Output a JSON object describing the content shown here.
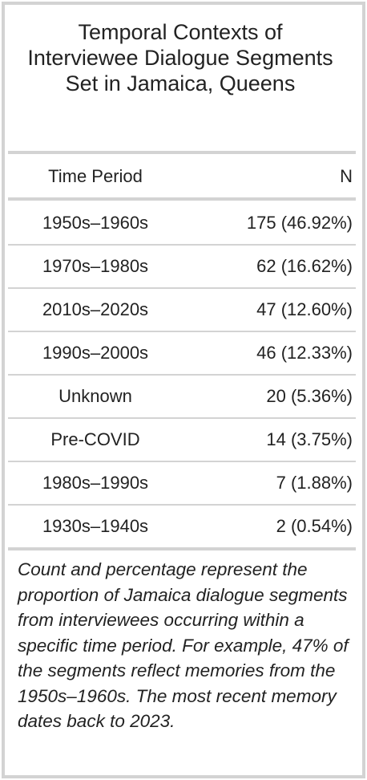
{
  "table": {
    "title": "Temporal Contexts of Interviewee Dialogue Segments Set in Jamaica, Queens",
    "columns": [
      "Time Period",
      "N"
    ],
    "rows": [
      {
        "period": "1950s–1960s",
        "n": "175 (46.92%)"
      },
      {
        "period": "1970s–1980s",
        "n": "62 (16.62%)"
      },
      {
        "period": "2010s–2020s",
        "n": "47 (12.60%)"
      },
      {
        "period": "1990s–2000s",
        "n": "46 (12.33%)"
      },
      {
        "period": "Unknown",
        "n": "20 (5.36%)"
      },
      {
        "period": "Pre-COVID",
        "n": "14 (3.75%)"
      },
      {
        "period": "1980s–1990s",
        "n": "7 (1.88%)"
      },
      {
        "period": "1930s–1940s",
        "n": "2 (0.54%)"
      }
    ],
    "footnote": "Count and percentage represent the proportion of Jamaica dialogue segments from interviewees occurring within a specific time period. For example, 47% of the segments reflect memories from the 1950s–1960s. The most recent memory dates back to 2023."
  }
}
